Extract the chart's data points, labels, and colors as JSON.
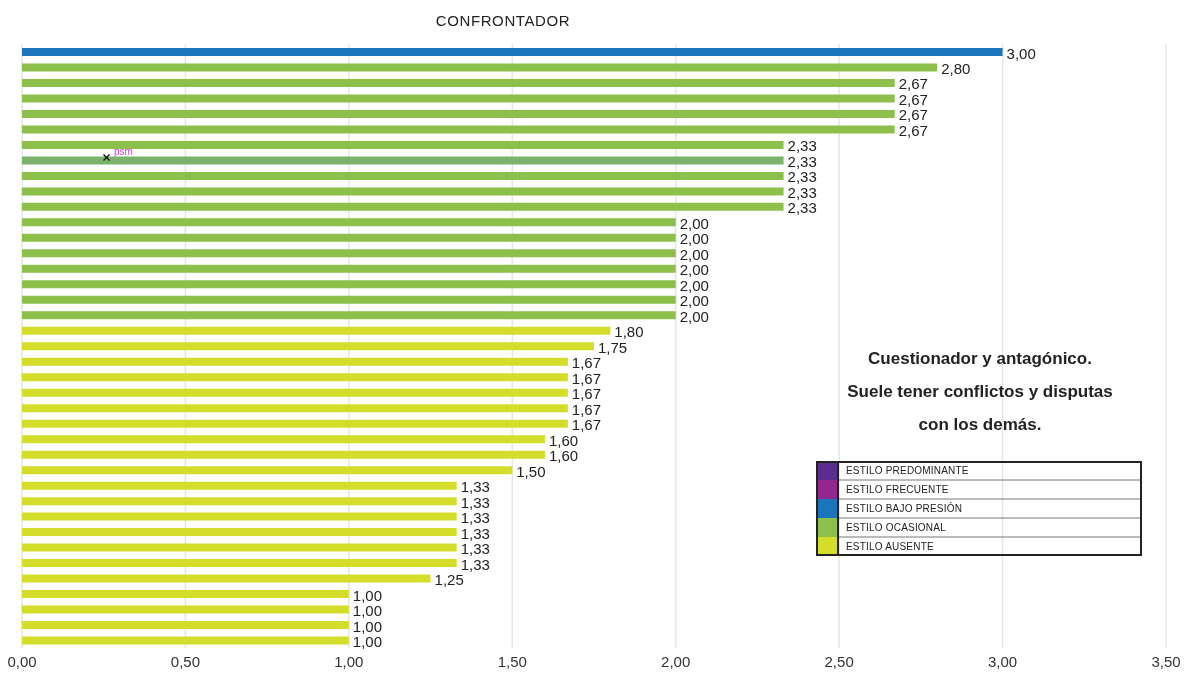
{
  "chart_data": {
    "type": "bar",
    "orientation": "horizontal",
    "stacked": true,
    "title": "CONFRONTADOR",
    "categories": [
      null,
      null,
      null,
      null,
      null,
      null,
      null,
      null,
      null,
      null,
      null,
      null,
      null,
      null,
      null,
      null,
      null,
      null,
      null,
      null,
      null,
      null,
      null,
      null,
      null,
      null,
      null,
      null,
      null,
      null,
      null,
      null,
      null,
      null,
      null,
      null,
      null,
      null,
      null
    ],
    "series": [
      {
        "name": "ESTILO PREDOMINANTE",
        "color": "#5c2d91",
        "values": [
          null,
          null,
          null,
          null,
          null,
          null,
          null,
          null,
          null,
          null,
          null,
          null,
          null,
          null,
          null,
          null,
          null,
          null,
          null,
          null,
          null,
          null,
          null,
          null,
          null,
          null,
          null,
          null,
          null,
          null,
          null,
          null,
          null,
          null,
          null,
          null,
          null,
          null,
          null
        ]
      },
      {
        "name": "ESTILO FRECUENTE",
        "color": "#92278f",
        "values": [
          null,
          null,
          null,
          null,
          null,
          null,
          null,
          null,
          null,
          null,
          null,
          null,
          null,
          null,
          null,
          null,
          null,
          null,
          null,
          null,
          null,
          null,
          null,
          null,
          null,
          null,
          null,
          null,
          null,
          null,
          null,
          null,
          null,
          null,
          null,
          null,
          null,
          null,
          null
        ]
      },
      {
        "name": "ESTILO BAJO PRESIÓN",
        "color": "#1b75bb",
        "values": [
          3,
          null,
          null,
          null,
          null,
          null,
          null,
          null,
          null,
          null,
          null,
          null,
          null,
          null,
          null,
          null,
          null,
          null,
          null,
          null,
          null,
          null,
          null,
          null,
          null,
          null,
          null,
          null,
          null,
          null,
          null,
          null,
          null,
          null,
          null,
          null,
          null,
          null,
          null
        ],
        "value_labels": [
          "3,00",
          null,
          null,
          null,
          null,
          null,
          null,
          null,
          null,
          null,
          null,
          null,
          null,
          null,
          null,
          null,
          null,
          null,
          null,
          null,
          null,
          null,
          null,
          null,
          null,
          null,
          null,
          null,
          null,
          null,
          null,
          null,
          null,
          null,
          null,
          null,
          null,
          null,
          null
        ]
      },
      {
        "name": "ESTILO OCASIONAL",
        "color": "#8cc04b",
        "values": [
          null,
          2.8,
          2.67,
          2.67,
          2.67,
          2.67,
          2.33,
          2.33,
          2.33,
          2.33,
          2.33,
          2,
          2,
          2,
          2,
          2,
          2,
          2,
          null,
          null,
          null,
          null,
          null,
          null,
          null,
          null,
          null,
          null,
          null,
          null,
          null,
          null,
          null,
          null,
          null,
          null,
          null,
          null,
          null
        ],
        "value_labels": [
          null,
          "2,80",
          "2,67",
          "2,67",
          "2,67",
          "2,67",
          "2,33",
          "2,33",
          "2,33",
          "2,33",
          "2,33",
          "2,00",
          "2,00",
          "2,00",
          "2,00",
          "2,00",
          "2,00",
          "2,00",
          null,
          null,
          null,
          null,
          null,
          null,
          null,
          null,
          null,
          null,
          null,
          null,
          null,
          null,
          null,
          null,
          null,
          null,
          null,
          null,
          null
        ],
        "colors": [
          null,
          "#8cc04b",
          "#8cc04b",
          "#8cc04b",
          "#8cc04b",
          "#8cc04b",
          "#8cc04b",
          "#7bb36c",
          "#8cc04b",
          "#8cc04b",
          "#8cc04b",
          "#8cc04b",
          "#8cc04b",
          "#8cc04b",
          "#8cc04b",
          "#8cc04b",
          "#8cc04b",
          "#8cc04b",
          null,
          null,
          null,
          null,
          null,
          null,
          null,
          null,
          null,
          null,
          null,
          null,
          null,
          null,
          null,
          null,
          null,
          null,
          null,
          null,
          null
        ]
      },
      {
        "name": "ESTILO AUSENTE",
        "color": "#d4de2a",
        "values": [
          null,
          null,
          null,
          null,
          null,
          null,
          null,
          null,
          null,
          null,
          null,
          null,
          null,
          null,
          null,
          null,
          null,
          null,
          1.8,
          1.75,
          1.67,
          1.67,
          1.67,
          1.67,
          1.67,
          1.6,
          1.6,
          1.5,
          1.33,
          1.33,
          1.33,
          1.33,
          1.33,
          1.33,
          1.25,
          1,
          1,
          1,
          1
        ],
        "value_labels": [
          null,
          null,
          null,
          null,
          null,
          null,
          null,
          null,
          null,
          null,
          null,
          null,
          null,
          null,
          null,
          null,
          null,
          null,
          "1,80",
          "1,75",
          "1,67",
          "1,67",
          "1,67",
          "1,67",
          "1,67",
          "1,60",
          "1,60",
          "1,50",
          "1,33",
          "1,33",
          "1,33",
          "1,33",
          "1,33",
          "1,33",
          "1,25",
          "1,00",
          "1,00",
          "1,00",
          "1,00"
        ]
      }
    ],
    "xlim": [
      0,
      3.5
    ],
    "xticks": [
      {
        "value": 0,
        "label": "0,00"
      },
      {
        "value": 0.5,
        "label": "0,50"
      },
      {
        "value": 1,
        "label": "1,00"
      },
      {
        "value": 1.5,
        "label": "1,50"
      },
      {
        "value": 2,
        "label": "2,00"
      },
      {
        "value": 2.5,
        "label": "2,50"
      },
      {
        "value": 3,
        "label": "3,00"
      },
      {
        "value": 3.5,
        "label": "3,50"
      }
    ],
    "grid": "x",
    "legend": "bottom right",
    "annotations": [
      "Cuestionador y antagónico.\nSuele tener conflictos y disputas\ncon los demás.",
      {
        "text": "psm",
        "x": 0.26
      }
    ]
  }
}
